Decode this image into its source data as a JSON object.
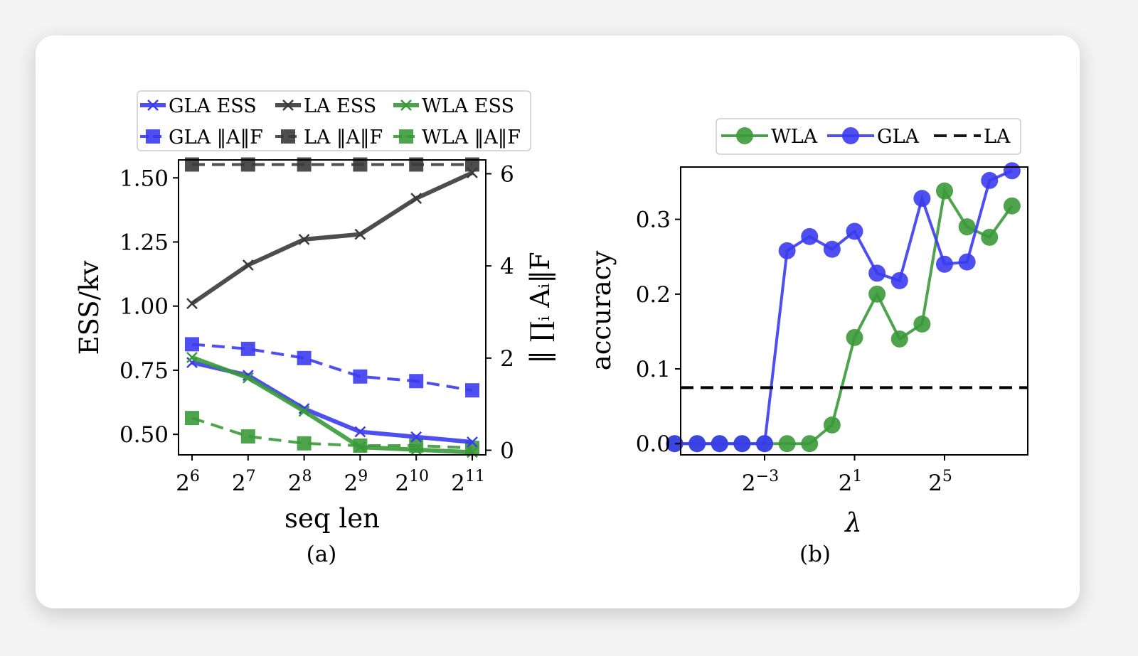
{
  "captions": {
    "a": "(a)",
    "b": "(b)"
  },
  "chart_data": [
    {
      "type": "line",
      "panel": "a",
      "xlabel": "seq len",
      "ylabel": "ESS/kv",
      "y2label": "‖ ∏ᵢ Aᵢ‖F",
      "x_scale": "log2",
      "x": [
        64,
        128,
        256,
        512,
        1024,
        2048
      ],
      "x_tick_labels": [
        {
          "base": "2",
          "exp": "6"
        },
        {
          "base": "2",
          "exp": "7"
        },
        {
          "base": "2",
          "exp": "8"
        },
        {
          "base": "2",
          "exp": "9"
        },
        {
          "base": "2",
          "exp": "10"
        },
        {
          "base": "2",
          "exp": "11"
        }
      ],
      "ylim": [
        0.42,
        1.57
      ],
      "yticks": [
        "0.50",
        "0.75",
        "1.00",
        "1.25",
        "1.50"
      ],
      "y2lim": [
        -0.1,
        6.3
      ],
      "y2ticks": [
        "0",
        "2",
        "4",
        "6"
      ],
      "legend_position": "above",
      "series": [
        {
          "name": "GLA ESS",
          "axis": "left",
          "color": "#3b3bf0",
          "marker": "x",
          "dash": false,
          "values": [
            0.78,
            0.73,
            0.6,
            0.51,
            0.49,
            0.47
          ]
        },
        {
          "name": "LA ESS",
          "axis": "left",
          "color": "#3a3a3a",
          "marker": "x",
          "dash": false,
          "values": [
            1.01,
            1.16,
            1.26,
            1.28,
            1.42,
            1.52
          ]
        },
        {
          "name": "WLA ESS",
          "axis": "left",
          "color": "#3a9a3a",
          "marker": "x",
          "dash": false,
          "values": [
            0.8,
            0.72,
            0.59,
            0.45,
            0.44,
            0.43
          ]
        },
        {
          "name": "GLA ‖A‖F",
          "axis": "right",
          "color": "#3b3bf0",
          "marker": "s",
          "dash": true,
          "values": [
            2.3,
            2.2,
            2.0,
            1.6,
            1.5,
            1.3
          ]
        },
        {
          "name": "LA ‖A‖F",
          "axis": "right",
          "color": "#3a3a3a",
          "marker": "s",
          "dash": true,
          "values": [
            6.2,
            6.2,
            6.2,
            6.2,
            6.2,
            6.2
          ]
        },
        {
          "name": "WLA ‖A‖F",
          "axis": "right",
          "color": "#3a9a3a",
          "marker": "s",
          "dash": true,
          "values": [
            0.7,
            0.3,
            0.15,
            0.1,
            0.1,
            0.05
          ]
        }
      ]
    },
    {
      "type": "line",
      "panel": "b",
      "xlabel": "λ",
      "ylabel": "accuracy",
      "x_scale": "log2",
      "x_exponents": [
        -7,
        -6,
        -5,
        -4,
        -3,
        -2,
        -1,
        0,
        1,
        2,
        3,
        4,
        5,
        6,
        7,
        8
      ],
      "x_tick_labels": [
        {
          "exp_value": -3,
          "base": "2",
          "exp": "−3"
        },
        {
          "exp_value": 1,
          "base": "2",
          "exp": "1"
        },
        {
          "exp_value": 5,
          "base": "2",
          "exp": "5"
        }
      ],
      "ylim": [
        -0.015,
        0.37
      ],
      "yticks": [
        "0.0",
        "0.1",
        "0.2",
        "0.3"
      ],
      "legend_position": "above",
      "series": [
        {
          "name": "WLA",
          "color": "#3a9a3a",
          "marker": "o",
          "dash": false,
          "values": [
            0.0,
            0.0,
            0.0,
            0.0,
            0.0,
            0.0,
            0.0,
            0.025,
            0.142,
            0.2,
            0.14,
            0.16,
            0.338,
            0.29,
            0.276,
            0.318
          ]
        },
        {
          "name": "GLA",
          "color": "#3b3bf0",
          "marker": "o",
          "dash": false,
          "values": [
            0.0,
            0.0,
            0.0,
            0.0,
            0.0,
            0.258,
            0.277,
            0.26,
            0.284,
            0.228,
            0.218,
            0.328,
            0.24,
            0.243,
            0.352,
            0.365
          ]
        },
        {
          "name": "LA",
          "color": "#000000",
          "marker": "none",
          "dash": true,
          "constant": 0.075
        }
      ]
    }
  ]
}
